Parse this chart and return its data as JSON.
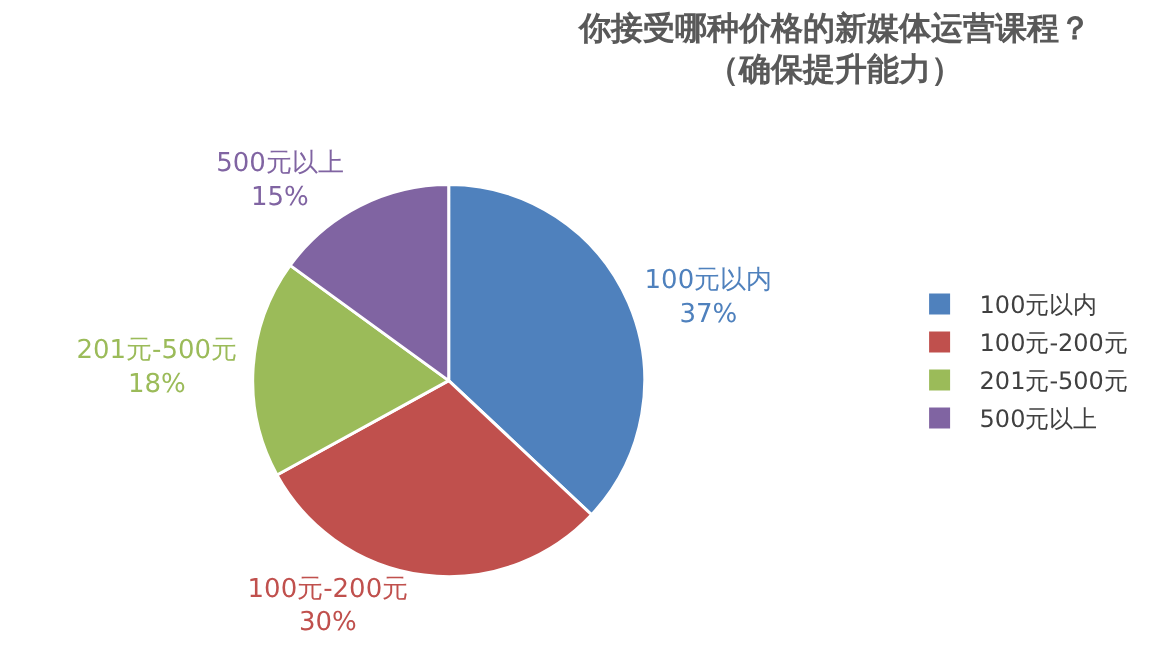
{
  "chart_data": {
    "type": "pie",
    "title": "你接受哪种价格的新媒体运营课程？",
    "subtitle": "（确保提升能力）",
    "categories": [
      "100元以内",
      "100元-200元",
      "201元-500元",
      "500元以上"
    ],
    "values": [
      37,
      30,
      18,
      15
    ],
    "value_labels": [
      "37%",
      "30%",
      "18%",
      "15%"
    ],
    "colors": [
      "#4f81bd",
      "#c0504d",
      "#9bbb59",
      "#8064a2"
    ],
    "legend": "right"
  }
}
